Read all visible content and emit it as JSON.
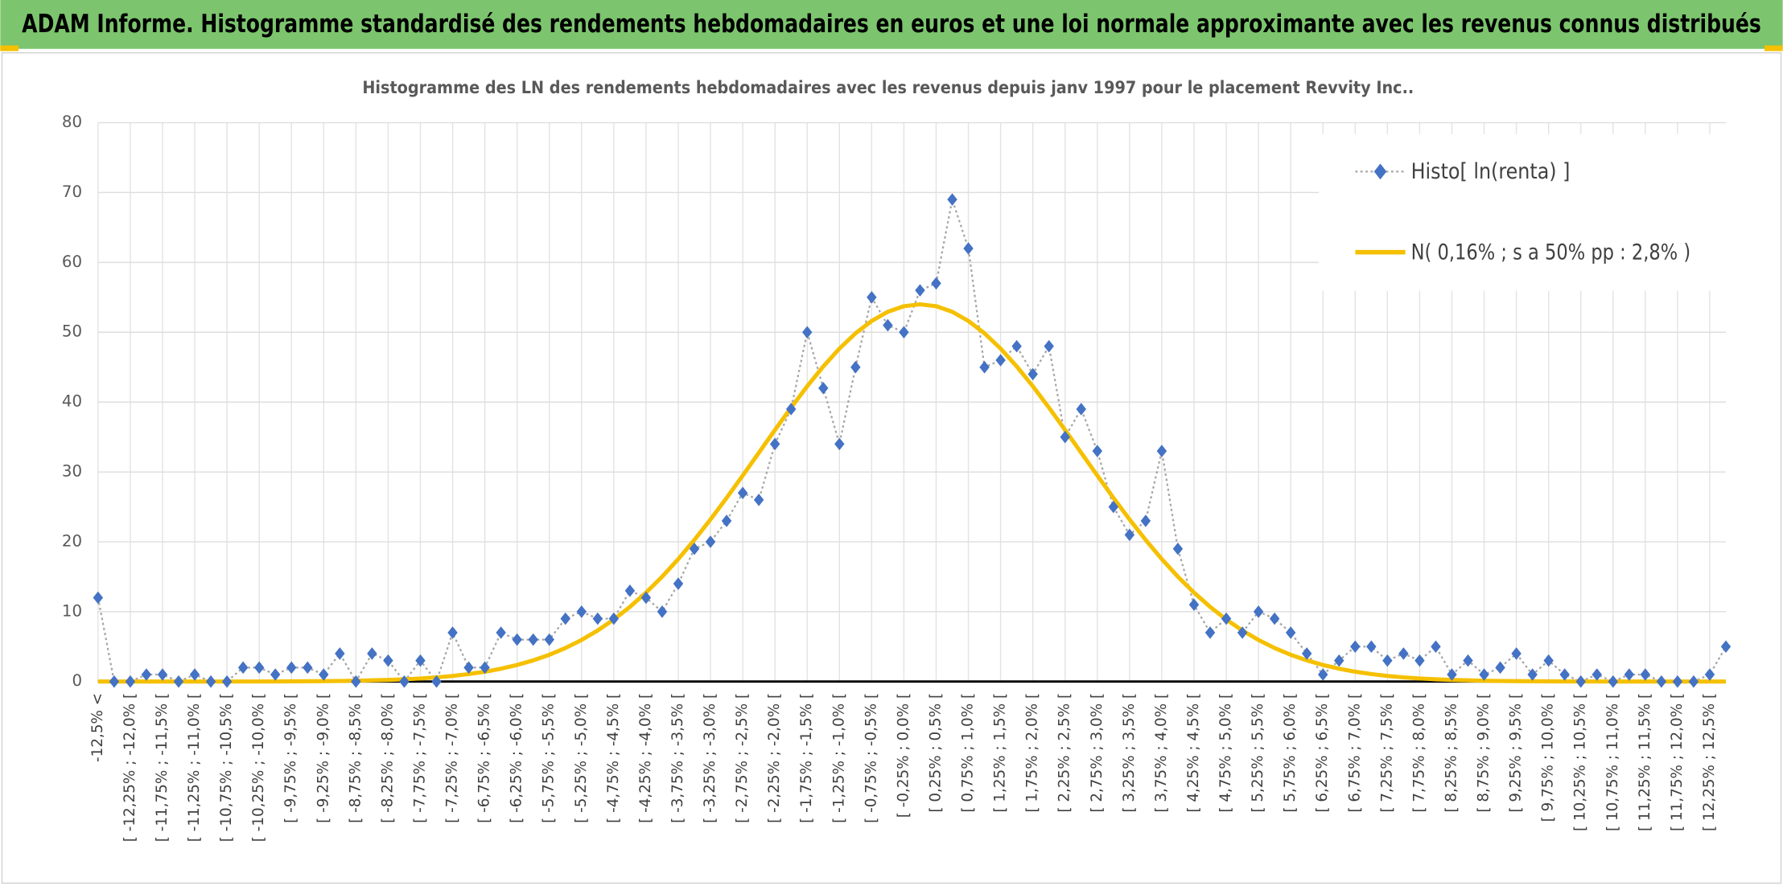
{
  "header": {
    "title": "ADAM Informe. Histogramme standardisé des rendements hebdomadaires en euros et une loi normale approximante avec les revenus connus distribués"
  },
  "chart_data": {
    "type": "line",
    "title": "Histogramme des LN des rendements hebdomadaires avec les revenus depuis janv 1997 pour le placement Revvity Inc..",
    "categories": [
      "-12,5% <",
      null,
      "[ -12,25% ; -12,0% [",
      null,
      "[ -11,75% ; -11,5% [",
      null,
      "[ -11,25% ; -11,0% [",
      null,
      "[ -10,75% ; -10,5% [",
      null,
      "[ -10,25% ; -10,0% [",
      null,
      "[ -9,75% ; -9,5% [",
      null,
      "[ -9,25% ; -9,0% [",
      null,
      "[ -8,75% ; -8,5% [",
      null,
      "[ -8,25% ; -8,0% [",
      null,
      "[ -7,75% ; -7,5% [",
      null,
      "[ -7,25% ; -7,0% [",
      null,
      "[ -6,75% ; -6,5% [",
      null,
      "[ -6,25% ; -6,0% [",
      null,
      "[ -5,75% ; -5,5% [",
      null,
      "[ -5,25% ; -5,0% [",
      null,
      "[ -4,75% ; -4,5% [",
      null,
      "[ -4,25% ; -4,0% [",
      null,
      "[ -3,75% ; -3,5% [",
      null,
      "[ -3,25% ; -3,0% [",
      null,
      "[ -2,75% ; -2,5% [",
      null,
      "[ -2,25% ; -2,0% [",
      null,
      "[ -1,75% ; -1,5% [",
      null,
      "[ -1,25% ; -1,0% [",
      null,
      "[ -0,75% ; -0,5% [",
      null,
      "[ -0,25% ; 0,0% [",
      null,
      "[ 0,25% ; 0,5% [",
      null,
      "[ 0,75% ; 1,0% [",
      null,
      "[ 1,25% ; 1,5% [",
      null,
      "[ 1,75% ; 2,0% [",
      null,
      "[ 2,25% ; 2,5% [",
      null,
      "[ 2,75% ; 3,0% [",
      null,
      "[ 3,25% ; 3,5% [",
      null,
      "[ 3,75% ; 4,0% [",
      null,
      "[ 4,25% ; 4,5% [",
      null,
      "[ 4,75% ; 5,0% [",
      null,
      "[ 5,25% ; 5,5% [",
      null,
      "[ 5,75% ; 6,0% [",
      null,
      "[ 6,25% ; 6,5% [",
      null,
      "[ 6,75% ; 7,0% [",
      null,
      "[ 7,25% ; 7,5% [",
      null,
      "[ 7,75% ; 8,0% [",
      null,
      "[ 8,25% ; 8,5% [",
      null,
      "[ 8,75% ; 9,0% [",
      null,
      "[ 9,25% ; 9,5% [",
      null,
      "[ 9,75% ; 10,0% [",
      null,
      "[ 10,25% ; 10,5% [",
      null,
      "[ 10,75% ; 11,0% [",
      null,
      "[ 11,25% ; 11,5% [",
      null,
      "[ 11,75% ; 12,0% [",
      null,
      "[ 12,25% ; 12,5% [",
      null
    ],
    "series": [
      {
        "name": "Histo[ ln(renta) ]",
        "color": "#4472c4",
        "line_color": "#a6a6a6",
        "values": [
          12,
          0,
          0,
          1,
          1,
          0,
          1,
          0,
          0,
          2,
          2,
          1,
          2,
          2,
          1,
          4,
          0,
          4,
          3,
          0,
          3,
          0,
          7,
          2,
          2,
          7,
          6,
          6,
          6,
          9,
          10,
          9,
          9,
          13,
          12,
          10,
          14,
          19,
          20,
          23,
          27,
          26,
          34,
          39,
          50,
          42,
          34,
          45,
          55,
          51,
          50,
          56,
          57,
          69,
          62,
          45,
          46,
          48,
          44,
          48,
          35,
          39,
          33,
          25,
          21,
          23,
          33,
          19,
          11,
          7,
          9,
          7,
          10,
          9,
          7,
          4,
          1,
          3,
          5,
          5,
          3,
          4,
          3,
          5,
          1,
          3,
          1,
          2,
          4,
          1,
          3,
          1,
          0,
          1,
          0,
          1,
          1,
          0,
          0,
          0,
          1,
          5
        ]
      },
      {
        "name": "N( 0,16% ; s a 50% pp : 2,8% )",
        "color": "#f5c000",
        "values": [
          0,
          0,
          0,
          0,
          0,
          0,
          0,
          0,
          0,
          0.01,
          0.01,
          0.02,
          0.03,
          0.04,
          0.06,
          0.08,
          0.12,
          0.17,
          0.23,
          0.32,
          0.44,
          0.6,
          0.8,
          1.07,
          1.41,
          1.84,
          2.37,
          3.03,
          3.83,
          4.8,
          5.95,
          7.31,
          8.88,
          10.69,
          12.73,
          15.01,
          17.53,
          20.27,
          23.2,
          26.29,
          29.49,
          32.75,
          36.02,
          39.21,
          42.27,
          45.11,
          47.66,
          49.85,
          51.62,
          52.93,
          53.73,
          54,
          53.73,
          52.93,
          51.62,
          49.85,
          47.66,
          45.11,
          42.27,
          39.21,
          36.02,
          32.75,
          29.49,
          26.29,
          23.2,
          20.27,
          17.53,
          15.01,
          12.73,
          10.69,
          8.88,
          7.31,
          5.95,
          4.8,
          3.83,
          3.03,
          2.37,
          1.84,
          1.41,
          1.07,
          0.8,
          0.6,
          0.44,
          0.32,
          0.23,
          0.17,
          0.12,
          0.08,
          0.06,
          0.04,
          0.03,
          0.02,
          0.01,
          0.01,
          0,
          0,
          0,
          0,
          0,
          0,
          0,
          0
        ]
      }
    ],
    "ylim": [
      0,
      80
    ],
    "yticks": [
      0,
      10,
      20,
      30,
      40,
      50,
      60,
      70,
      80
    ],
    "grid": true,
    "legend": "top-right"
  }
}
